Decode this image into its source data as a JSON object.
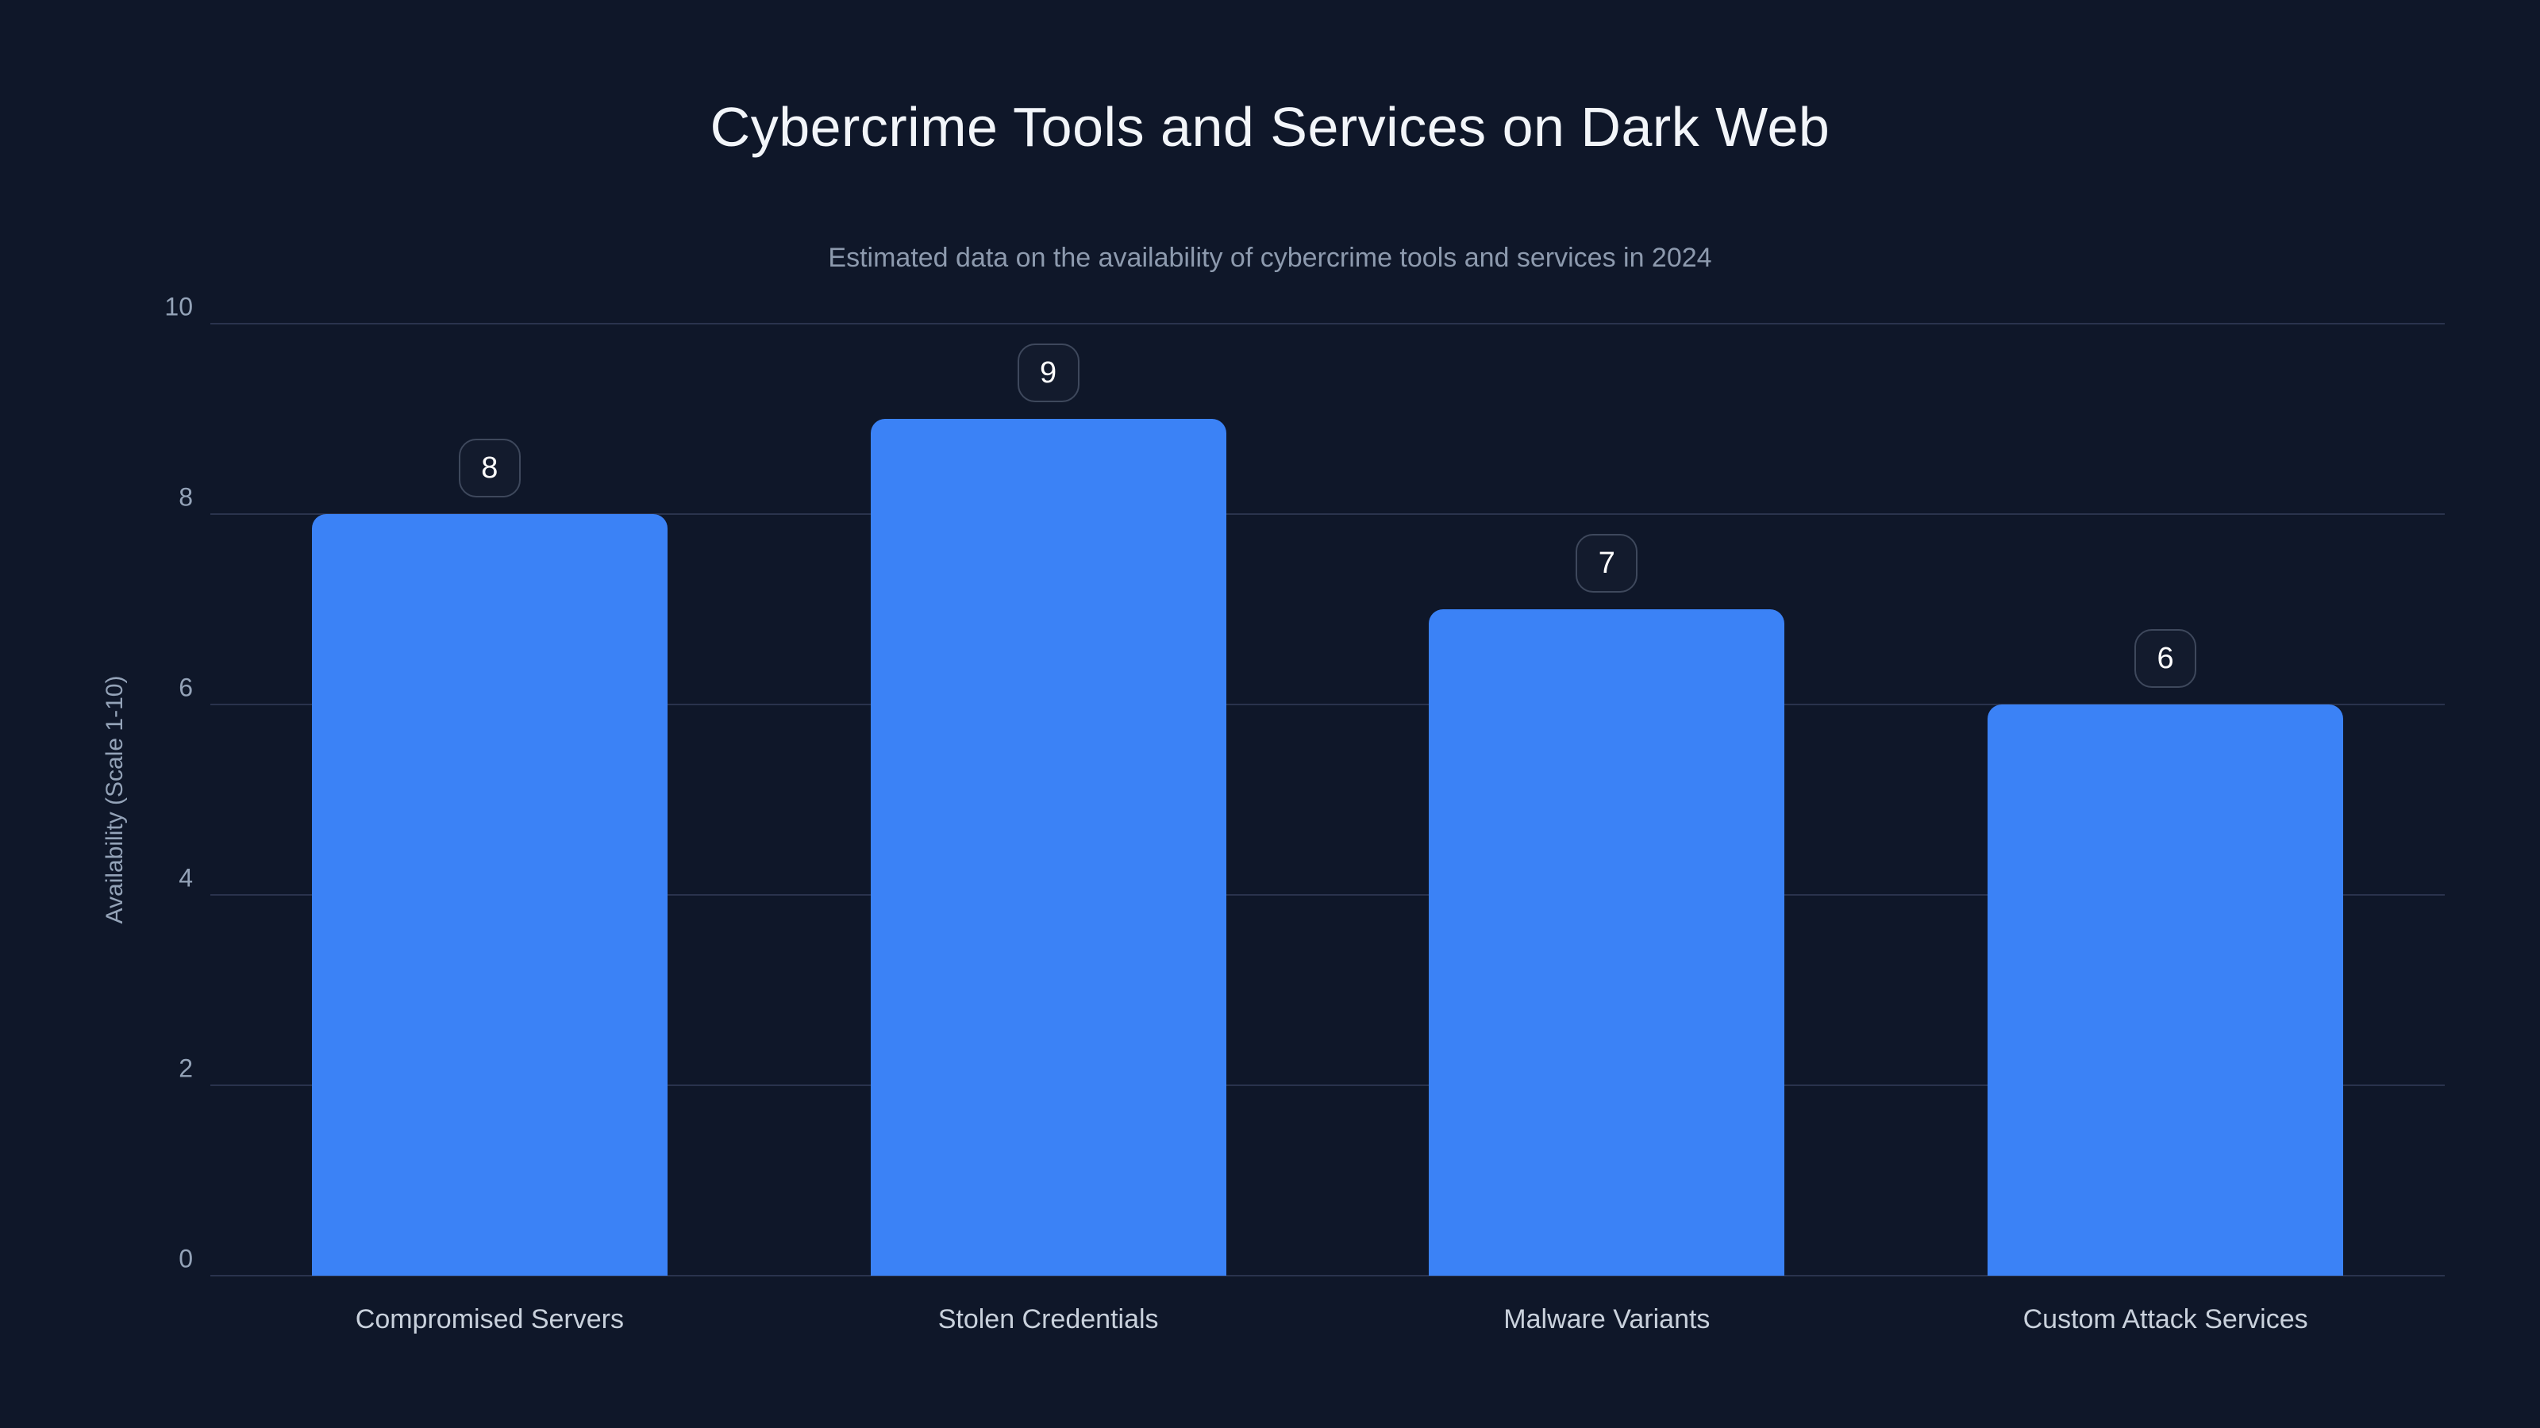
{
  "header": {
    "title": "Cybercrime Tools and Services on Dark Web",
    "subtitle": "Estimated data on the availability of cybercrime tools and services in 2024"
  },
  "chart_data": {
    "type": "bar",
    "title": "Cybercrime Tools and Services on Dark Web",
    "subtitle": "Estimated data on the availability of cybercrime tools and services in 2024",
    "categories": [
      "Compromised Servers",
      "Stolen Credentials",
      "Malware Variants",
      "Custom Attack Services"
    ],
    "values": [
      8,
      9,
      7,
      6
    ],
    "value_labels": [
      "8",
      "9",
      "7",
      "6"
    ],
    "xlabel": "",
    "ylabel": "Availability (Scale 1-10)",
    "ylim": [
      0,
      10
    ],
    "yticks": [
      0,
      2,
      4,
      6,
      8,
      10
    ],
    "grid": true,
    "legend": false
  },
  "colors": {
    "background": "#0f1729",
    "bar": "#3b82f6",
    "grid": "#2a334d",
    "tick": "#94a3b8",
    "category": "#c9d1dc",
    "title": "#f2f5f9",
    "subtitle": "#8d9aae",
    "badge_border": "#3e485c",
    "badge_text": "#ffffff"
  }
}
